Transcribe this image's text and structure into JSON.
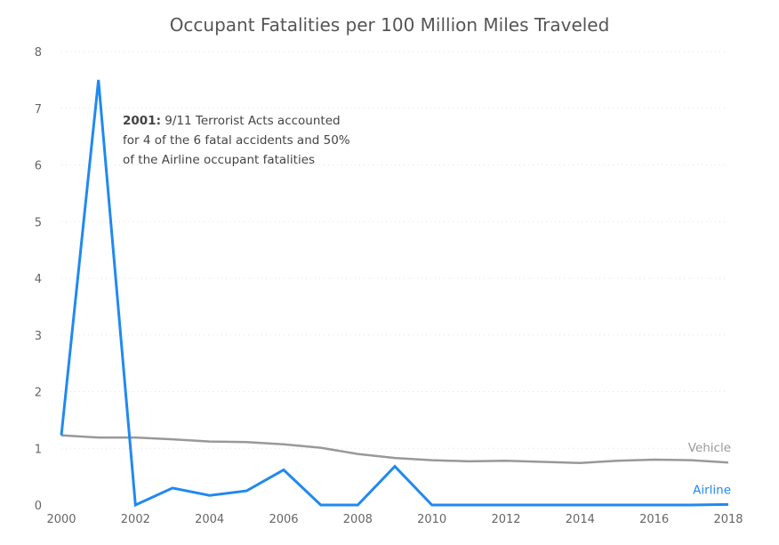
{
  "chart_data": {
    "type": "line",
    "title": "Occupant Fatalities per 100 Million Miles Traveled",
    "xlabel": "",
    "ylabel": "",
    "x": [
      2000,
      2001,
      2002,
      2003,
      2004,
      2005,
      2006,
      2007,
      2008,
      2009,
      2010,
      2011,
      2012,
      2013,
      2014,
      2015,
      2016,
      2017,
      2018
    ],
    "xticks": [
      "2000",
      "2002",
      "2004",
      "2006",
      "2008",
      "2010",
      "2012",
      "2014",
      "2016",
      "2018"
    ],
    "yticks": [
      "0",
      "1",
      "2",
      "3",
      "4",
      "5",
      "6",
      "7",
      "8"
    ],
    "xlim": [
      2000,
      2018
    ],
    "ylim": [
      0,
      8
    ],
    "grid": "horizontal dotted",
    "legend": "inline labels at right end of lines",
    "series": [
      {
        "name": "Vehicle",
        "color": "#999999",
        "values": [
          1.23,
          1.19,
          1.19,
          1.16,
          1.12,
          1.11,
          1.07,
          1.01,
          0.9,
          0.83,
          0.79,
          0.77,
          0.78,
          0.76,
          0.74,
          0.78,
          0.8,
          0.79,
          0.75
        ]
      },
      {
        "name": "Airline",
        "color": "#2189F0",
        "values": [
          1.23,
          7.5,
          0.0,
          0.3,
          0.17,
          0.25,
          0.62,
          0.0,
          0.0,
          0.68,
          0.0,
          0.0,
          0.0,
          0.0,
          0.0,
          0.0,
          0.0,
          0.0,
          0.01
        ]
      }
    ],
    "annotation": {
      "bold": "2001:",
      "lines": [
        " 9/11 Terrorist Acts accounted",
        "for 4 of the 6 fatal accidents and 50%",
        "of the Airline occupant fatalities"
      ]
    }
  }
}
